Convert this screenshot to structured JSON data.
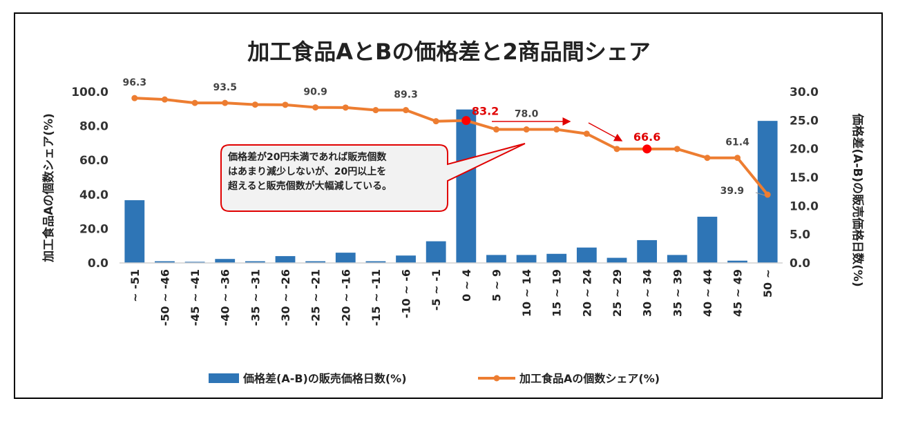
{
  "chart_data": {
    "type": "bar+line",
    "title": "加工食品AとBの価格差と2商品間シェア",
    "categories": [
      [
        "~",
        "-51"
      ],
      [
        "-50",
        "~",
        "-46"
      ],
      [
        "-45",
        "~",
        "-41"
      ],
      [
        "-40",
        "~",
        "-36"
      ],
      [
        "-35",
        "~",
        "-31"
      ],
      [
        "-30",
        "~",
        "-26"
      ],
      [
        "-25",
        "~",
        "-21"
      ],
      [
        "-20",
        "~",
        "-16"
      ],
      [
        "-15",
        "~",
        "-11"
      ],
      [
        "-10",
        "~",
        "-6"
      ],
      [
        "-5",
        "~",
        "-1"
      ],
      [
        "0",
        "~",
        "4"
      ],
      [
        "5",
        "~",
        "9"
      ],
      [
        "10",
        "~",
        "14"
      ],
      [
        "15",
        "~",
        "19"
      ],
      [
        "20",
        "~",
        "24"
      ],
      [
        "25",
        "~",
        "29"
      ],
      [
        "30",
        "~",
        "34"
      ],
      [
        "35",
        "~",
        "39"
      ],
      [
        "40",
        "~",
        "44"
      ],
      [
        "45",
        "~",
        "49"
      ],
      [
        "50",
        "~"
      ]
    ],
    "series": [
      {
        "name": "価格差(A-B)の販売価格日数(%)",
        "type": "bar",
        "axis": "right",
        "color": "#2e75b6",
        "values": [
          11.0,
          0.3,
          0.2,
          0.7,
          0.3,
          1.2,
          0.3,
          1.8,
          0.3,
          1.3,
          3.8,
          26.9,
          1.4,
          1.4,
          1.6,
          2.7,
          0.9,
          4.0,
          1.4,
          8.1,
          0.4,
          24.9
        ]
      },
      {
        "name": "加工食品Aの個数シェア(%)",
        "type": "line",
        "axis": "left",
        "color": "#ed7d31",
        "values": [
          96.3,
          95.5,
          93.5,
          93.5,
          92.5,
          92.4,
          90.9,
          90.8,
          89.3,
          89.3,
          82.8,
          83.2,
          78.0,
          78.0,
          78.0,
          75.5,
          66.6,
          66.6,
          66.6,
          61.4,
          61.4,
          39.9
        ]
      }
    ],
    "data_labels": [
      {
        "index": 0,
        "text": "96.3",
        "style": "normal"
      },
      {
        "index": 3,
        "text": "93.5",
        "style": "normal"
      },
      {
        "index": 6,
        "text": "90.9",
        "style": "normal"
      },
      {
        "index": 9,
        "text": "89.3",
        "style": "normal"
      },
      {
        "index": 11,
        "text": "83.2",
        "style": "red"
      },
      {
        "index": 13,
        "text": "78.0",
        "style": "normal"
      },
      {
        "index": 17,
        "text": "66.6",
        "style": "red"
      },
      {
        "index": 20,
        "text": "61.4",
        "style": "normal"
      },
      {
        "index": 21,
        "text": "39.9",
        "style": "normal"
      }
    ],
    "highlight_points": [
      11,
      17
    ],
    "highlight_color": "#ff0000",
    "ylabel_left": "加工食品Aの個数シェア(%)",
    "ylabel_right": "価格差(A-B)の販売価格日数(%)",
    "ylim_left": [
      0,
      100
    ],
    "ylim_right": [
      0,
      30
    ],
    "yticks_left": [
      "0.0",
      "20.0",
      "40.0",
      "60.0",
      "80.0",
      "100.0"
    ],
    "yticks_right": [
      "0.0",
      "5.0",
      "10.0",
      "15.0",
      "20.0",
      "25.0",
      "30.0"
    ],
    "grid": false,
    "legend_position": "bottom",
    "annotation": {
      "lines": [
        "価格差が20円未満であれば販売個数",
        "はあまり減少しないが、20円以上を",
        "超えると販売個数が大幅減している。"
      ],
      "border_color": "#e00000"
    }
  }
}
